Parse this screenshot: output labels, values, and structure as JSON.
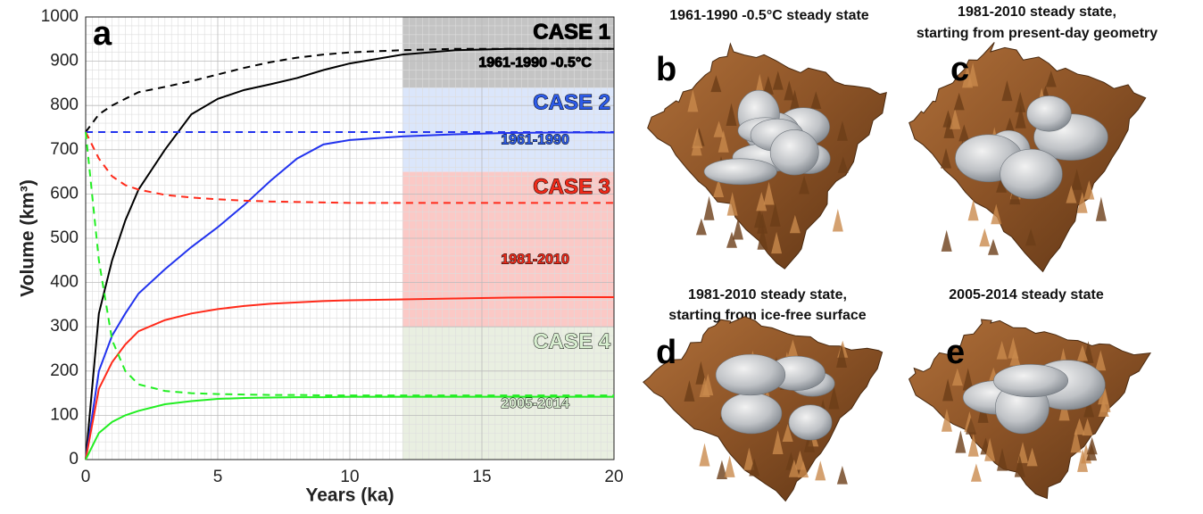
{
  "chart_data": {
    "type": "line",
    "panel_label": "a",
    "x_label": "Years (ka)",
    "y_label": "Volume (km³)",
    "xlim": [
      0,
      20
    ],
    "xticks": [
      0,
      5,
      10,
      15,
      20
    ],
    "ylim": [
      0,
      1000
    ],
    "yticks": [
      0,
      100,
      200,
      300,
      400,
      500,
      600,
      700,
      800,
      900,
      1000
    ],
    "grid": true,
    "minor_grid": true,
    "x": [
      0,
      0.5,
      1,
      1.5,
      2,
      3,
      4,
      5,
      6,
      7,
      8,
      9,
      10,
      12,
      14,
      16,
      18,
      20
    ],
    "series": [
      {
        "color": "#000000",
        "dashed": false,
        "values": [
          0,
          330,
          450,
          540,
          610,
          700,
          780,
          815,
          835,
          848,
          862,
          880,
          895,
          915,
          925,
          928,
          928,
          928
        ]
      },
      {
        "color": "#000000",
        "dashed": true,
        "values": [
          740,
          780,
          800,
          815,
          830,
          842,
          855,
          870,
          885,
          898,
          908,
          915,
          920,
          925,
          928,
          928,
          928,
          928
        ]
      },
      {
        "color": "#2233ee",
        "dashed": false,
        "values": [
          0,
          200,
          280,
          330,
          375,
          430,
          480,
          525,
          575,
          630,
          680,
          712,
          722,
          730,
          735,
          738,
          739,
          739
        ]
      },
      {
        "color": "#2233ee",
        "dashed": true,
        "values": [
          740,
          740,
          740,
          740,
          740,
          740,
          740,
          740,
          740,
          740,
          740,
          740,
          740,
          740,
          740,
          740,
          740,
          740
        ]
      },
      {
        "color": "#ff2a1a",
        "dashed": false,
        "values": [
          0,
          160,
          220,
          260,
          290,
          315,
          330,
          340,
          347,
          352,
          355,
          358,
          360,
          362,
          364,
          366,
          367,
          367
        ]
      },
      {
        "color": "#ff2a1a",
        "dashed": true,
        "values": [
          740,
          680,
          640,
          620,
          610,
          598,
          592,
          588,
          585,
          583,
          582,
          581,
          580,
          580,
          580,
          580,
          580,
          580
        ]
      },
      {
        "color": "#22ee22",
        "dashed": false,
        "values": [
          0,
          60,
          85,
          100,
          110,
          125,
          132,
          137,
          139,
          140,
          141,
          141,
          142,
          142,
          142,
          142,
          142,
          142
        ]
      },
      {
        "color": "#22ee22",
        "dashed": true,
        "values": [
          740,
          450,
          270,
          200,
          170,
          155,
          150,
          148,
          147,
          146,
          146,
          145,
          145,
          145,
          145,
          145,
          145,
          145
        ]
      }
    ],
    "bands": [
      {
        "x0": 12,
        "x1": 20,
        "y0": 840,
        "y1": 1000,
        "color": "#c4c4c4",
        "text_color": "#000000",
        "label": "CASE 1",
        "period": "1961-1990 -0.5°C"
      },
      {
        "x0": 12,
        "x1": 20,
        "y0": 650,
        "y1": 840,
        "color": "#dbe6fb",
        "text_color": "#2d5be8",
        "label": "CASE 2",
        "period": "1961-1990"
      },
      {
        "x0": 12,
        "x1": 20,
        "y0": 300,
        "y1": 650,
        "color": "#fbc9c6",
        "text_color": "#ee2a1a",
        "label": "CASE 3",
        "period": "1981-2010"
      },
      {
        "x0": 12,
        "x1": 20,
        "y0": 0,
        "y1": 300,
        "color": "#e9efe1",
        "text_color": "#d8efd0",
        "label": "CASE 4",
        "period": "2005-2014"
      }
    ]
  },
  "panels": [
    {
      "letter": "b",
      "title": [
        "1961-1990 -0.5°C steady state"
      ]
    },
    {
      "letter": "c",
      "title": [
        "1981-2010 steady state,",
        "starting from present-day geometry"
      ]
    },
    {
      "letter": "d",
      "title": [
        "1981-2010 steady state,",
        "starting from ice-free surface"
      ]
    },
    {
      "letter": "e",
      "title": [
        "2005-2014 steady state"
      ]
    }
  ]
}
